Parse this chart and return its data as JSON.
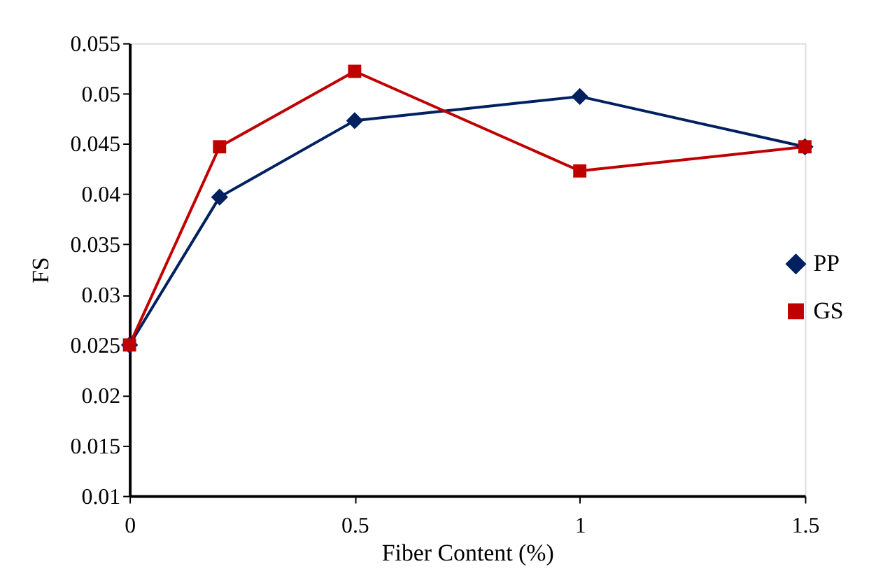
{
  "chart_data": {
    "type": "line",
    "xlabel": "Fiber Content (%)",
    "ylabel": "FS",
    "x": [
      0,
      0.2,
      0.5,
      1,
      1.5
    ],
    "series": [
      {
        "name": "PP",
        "color": "#002060",
        "marker": "diamond",
        "values": [
          0.025,
          0.0397,
          0.0473,
          0.0497,
          0.0447
        ]
      },
      {
        "name": "GS",
        "color": "#c00000",
        "marker": "square",
        "values": [
          0.025,
          0.0447,
          0.0522,
          0.0423,
          0.0447
        ]
      }
    ],
    "xlim": [
      0,
      1.5
    ],
    "xticks": [
      0,
      0.5,
      1,
      1.5
    ],
    "ylim": [
      0.01,
      0.055
    ],
    "yticks": [
      0.01,
      0.015,
      0.02,
      0.025,
      0.03,
      0.035,
      0.04,
      0.045,
      0.05,
      0.055
    ],
    "grid": false,
    "legend": "right",
    "line_style": "solid"
  }
}
